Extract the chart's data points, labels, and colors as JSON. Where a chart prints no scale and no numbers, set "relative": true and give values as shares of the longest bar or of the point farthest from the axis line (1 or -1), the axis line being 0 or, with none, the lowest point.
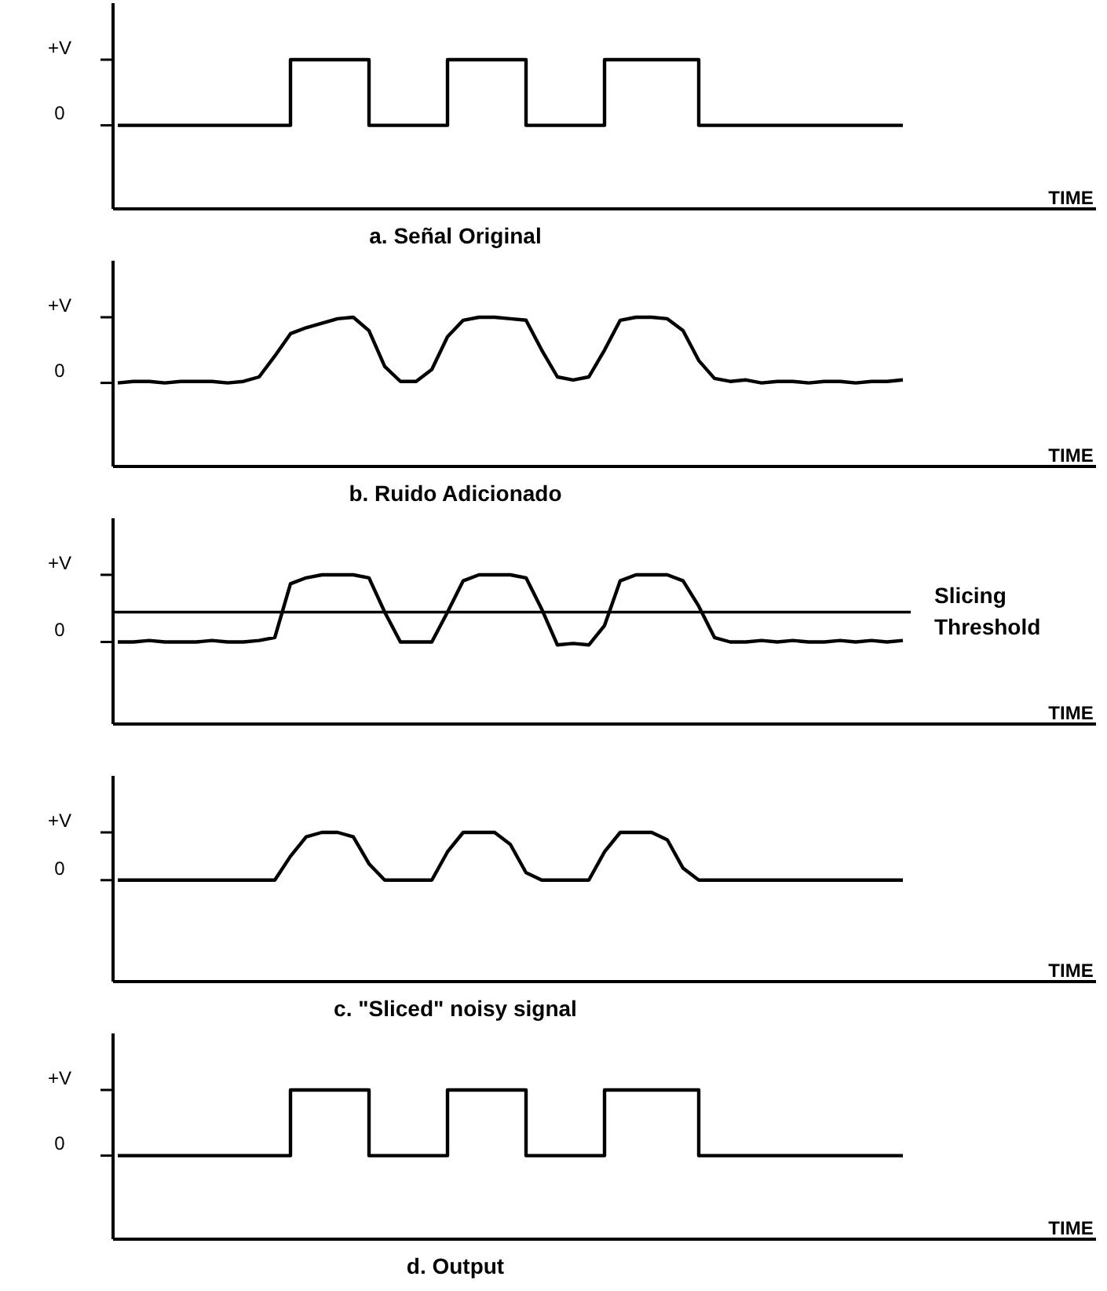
{
  "chart_data": [
    {
      "type": "step",
      "title": "a.  Señal Original",
      "relative": true,
      "annotations": [
        "+V",
        "0",
        "TIME"
      ],
      "categories": [
        null,
        null,
        null,
        null,
        null,
        null,
        null,
        null,
        null,
        null,
        null,
        null,
        null,
        null,
        null,
        null,
        null,
        null,
        null,
        null,
        null,
        null,
        null,
        null,
        null,
        null,
        null,
        null,
        null,
        null,
        null,
        null,
        null,
        null,
        null,
        null,
        null,
        null,
        null,
        null,
        null,
        null,
        null,
        null,
        null,
        null,
        null,
        null,
        null,
        null,
        null
      ],
      "series": [
        {
          "color": "#000000",
          "values": [
            0.56,
            0.56,
            0.56,
            0.56,
            0.56,
            0.56,
            0.56,
            0.56,
            0.56,
            0.56,
            0.56,
            1,
            1,
            1,
            1,
            1,
            0.56,
            0.56,
            0.56,
            0.56,
            0.56,
            1,
            1,
            1,
            1,
            1,
            0.56,
            0.56,
            0.56,
            0.56,
            0.56,
            1,
            1,
            1,
            1,
            1,
            1,
            0.56,
            0.56,
            0.56,
            0.56,
            0.56,
            0.56,
            0.56,
            0.56,
            0.56,
            0.56,
            0.56,
            0.56,
            0.56,
            0.56
          ]
        }
      ]
    },
    {
      "type": "line",
      "title": "b.  Ruido Adicionado",
      "relative": true,
      "annotations": [
        "+V",
        "0",
        "TIME"
      ],
      "categories": [
        null,
        null,
        null,
        null,
        null,
        null,
        null,
        null,
        null,
        null,
        null,
        null,
        null,
        null,
        null,
        null,
        null,
        null,
        null,
        null,
        null,
        null,
        null,
        null,
        null,
        null,
        null,
        null,
        null,
        null,
        null,
        null,
        null,
        null,
        null,
        null,
        null,
        null,
        null,
        null,
        null,
        null,
        null,
        null,
        null,
        null,
        null,
        null,
        null,
        null,
        null
      ],
      "series": [
        {
          "color": "#000000",
          "values": [
            0.56,
            0.57,
            0.57,
            0.56,
            0.57,
            0.57,
            0.57,
            0.56,
            0.57,
            0.6,
            0.74,
            0.89,
            0.93,
            0.96,
            0.99,
            1,
            0.91,
            0.67,
            0.57,
            0.57,
            0.65,
            0.87,
            0.98,
            1,
            1,
            0.99,
            0.98,
            0.78,
            0.6,
            0.58,
            0.6,
            0.78,
            0.98,
            1,
            1,
            0.99,
            0.91,
            0.71,
            0.59,
            0.57,
            0.58,
            0.56,
            0.57,
            0.57,
            0.56,
            0.57,
            0.57,
            0.56,
            0.57,
            0.57,
            0.58
          ]
        }
      ]
    },
    {
      "type": "line",
      "relative": true,
      "annotations": [
        "+V",
        "0",
        "TIME"
      ],
      "categories": [
        null,
        null,
        null,
        null,
        null,
        null,
        null,
        null,
        null,
        null,
        null,
        null,
        null,
        null,
        null,
        null,
        null,
        null,
        null,
        null,
        null,
        null,
        null,
        null,
        null,
        null,
        null,
        null,
        null,
        null,
        null,
        null,
        null,
        null,
        null,
        null,
        null,
        null,
        null,
        null,
        null,
        null,
        null,
        null,
        null,
        null,
        null,
        null,
        null,
        null,
        null
      ],
      "series": [
        {
          "color": "#000000",
          "values": [
            0.55,
            0.55,
            0.56,
            0.55,
            0.55,
            0.55,
            0.56,
            0.55,
            0.55,
            0.56,
            0.58,
            0.94,
            0.98,
            1,
            1,
            1,
            0.98,
            0.75,
            0.55,
            0.55,
            0.55,
            0.75,
            0.96,
            1,
            1,
            1,
            0.98,
            0.77,
            0.53,
            0.54,
            0.53,
            0.66,
            0.96,
            1,
            1,
            1,
            0.96,
            0.79,
            0.58,
            0.55,
            0.55,
            0.56,
            0.55,
            0.56,
            0.55,
            0.55,
            0.56,
            0.55,
            0.56,
            0.55,
            0.56
          ]
        }
      ],
      "ref_lines": [
        {
          "axis": "y",
          "value": 0.75,
          "label": "Slicing Threshold",
          "color": "#000000"
        }
      ]
    },
    {
      "type": "line",
      "title": "c.  \"Sliced\" noisy signal",
      "relative": true,
      "annotations": [
        "+V",
        "0",
        "TIME"
      ],
      "categories": [
        null,
        null,
        null,
        null,
        null,
        null,
        null,
        null,
        null,
        null,
        null,
        null,
        null,
        null,
        null,
        null,
        null,
        null,
        null,
        null,
        null,
        null,
        null,
        null,
        null,
        null,
        null,
        null,
        null,
        null,
        null,
        null,
        null,
        null,
        null,
        null,
        null,
        null,
        null,
        null,
        null,
        null,
        null,
        null,
        null,
        null,
        null,
        null,
        null,
        null,
        null
      ],
      "series": [
        {
          "color": "#000000",
          "values": [
            0.68,
            0.68,
            0.68,
            0.68,
            0.68,
            0.68,
            0.68,
            0.68,
            0.68,
            0.68,
            0.68,
            0.84,
            0.97,
            1,
            1,
            0.97,
            0.79,
            0.68,
            0.68,
            0.68,
            0.68,
            0.87,
            1,
            1,
            1,
            0.92,
            0.73,
            0.68,
            0.68,
            0.68,
            0.68,
            0.87,
            1,
            1,
            1,
            0.95,
            0.76,
            0.68,
            0.68,
            0.68,
            0.68,
            0.68,
            0.68,
            0.68,
            0.68,
            0.68,
            0.68,
            0.68,
            0.68,
            0.68,
            0.68
          ]
        }
      ]
    },
    {
      "type": "step",
      "title": "d.  Output",
      "relative": true,
      "annotations": [
        "+V",
        "0",
        "TIME"
      ],
      "categories": [
        null,
        null,
        null,
        null,
        null,
        null,
        null,
        null,
        null,
        null,
        null,
        null,
        null,
        null,
        null,
        null,
        null,
        null,
        null,
        null,
        null,
        null,
        null,
        null,
        null,
        null,
        null,
        null,
        null,
        null,
        null,
        null,
        null,
        null,
        null,
        null,
        null,
        null,
        null,
        null,
        null,
        null,
        null,
        null,
        null,
        null,
        null,
        null,
        null,
        null,
        null
      ],
      "series": [
        {
          "color": "#000000",
          "values": [
            0.56,
            0.56,
            0.56,
            0.56,
            0.56,
            0.56,
            0.56,
            0.56,
            0.56,
            0.56,
            0.56,
            1,
            1,
            1,
            1,
            1,
            0.56,
            0.56,
            0.56,
            0.56,
            0.56,
            1,
            1,
            1,
            1,
            1,
            0.56,
            0.56,
            0.56,
            0.56,
            0.56,
            1,
            1,
            1,
            1,
            1,
            1,
            0.56,
            0.56,
            0.56,
            0.56,
            0.56,
            0.56,
            0.56,
            0.56,
            0.56,
            0.56,
            0.56,
            0.56,
            0.56,
            0.56
          ]
        }
      ]
    }
  ]
}
